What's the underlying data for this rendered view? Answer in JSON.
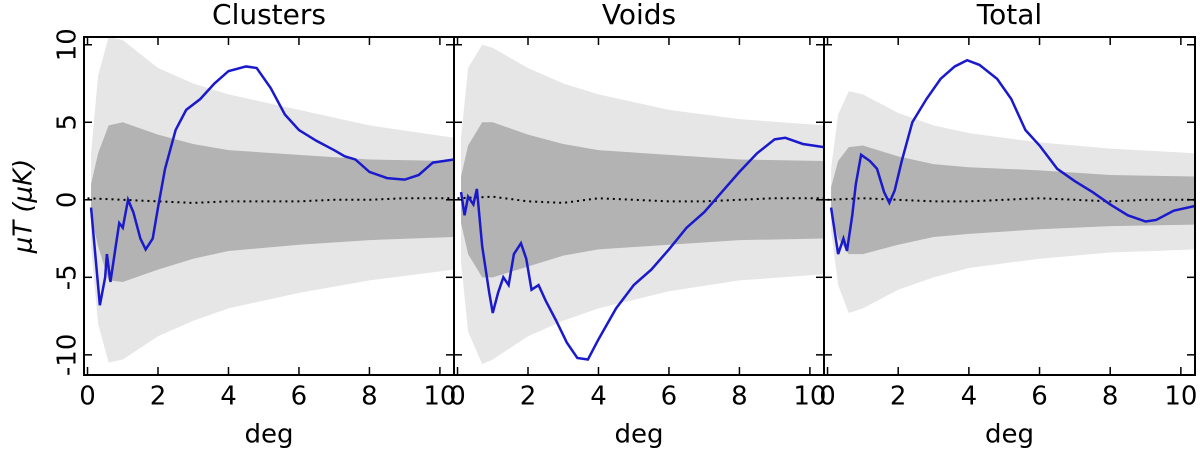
{
  "chart_data": [
    {
      "type": "line",
      "title": "Clusters",
      "xlabel": "deg",
      "ylabel": "μT (μK)",
      "xlim": [
        -0.1,
        10.4
      ],
      "ylim": [
        -11.3,
        10.5
      ],
      "xticks": [
        0,
        2,
        4,
        6,
        8,
        10
      ],
      "yticks": [
        -10,
        -5,
        0,
        5,
        10
      ],
      "bands": [
        {
          "color": "#e6e6e6",
          "x": [
            0.1,
            0.3,
            0.6,
            1,
            2,
            3,
            4,
            6,
            8,
            10.4
          ],
          "upper": [
            3,
            8,
            10.5,
            10.3,
            8.5,
            7.5,
            6.8,
            5.8,
            4.8,
            4
          ],
          "lower": [
            -3,
            -8,
            -10.5,
            -10.3,
            -8.8,
            -7.8,
            -7,
            -6,
            -5.2,
            -4.5
          ]
        },
        {
          "color": "#b3b3b3",
          "x": [
            0.1,
            0.3,
            0.6,
            1,
            2,
            3,
            4,
            6,
            8,
            10.4
          ],
          "upper": [
            1,
            3,
            4.8,
            5,
            4.2,
            3.6,
            3.2,
            2.9,
            2.6,
            2.5
          ],
          "lower": [
            -1,
            -3,
            -5.2,
            -5.3,
            -4.5,
            -3.8,
            -3.3,
            -2.9,
            -2.6,
            -2.4
          ]
        }
      ],
      "series": [
        {
          "color": "#000000",
          "style": "dotted",
          "x": [
            0,
            1,
            2,
            3,
            4,
            5,
            6,
            7,
            8,
            9,
            10.4
          ],
          "values": [
            0.1,
            0,
            -0.1,
            -0.2,
            -0.1,
            -0.1,
            -0.1,
            0,
            0,
            0.1,
            0.1
          ]
        },
        {
          "color": "#1a1acc",
          "x": [
            0.1,
            0.35,
            0.5,
            0.55,
            0.65,
            0.8,
            0.9,
            1.0,
            1.15,
            1.3,
            1.5,
            1.65,
            1.85,
            2.0,
            2.2,
            2.5,
            2.8,
            3.2,
            3.6,
            4.0,
            4.5,
            4.8,
            5.2,
            5.6,
            6.0,
            6.5,
            7.0,
            7.3,
            7.6,
            8.0,
            8.5,
            9.0,
            9.4,
            9.8,
            10.4
          ],
          "values": [
            -0.5,
            -6.8,
            -5,
            -3.5,
            -5.3,
            -3,
            -1.5,
            -1.8,
            0,
            -0.8,
            -2.5,
            -3.2,
            -2.5,
            -0.5,
            2,
            4.5,
            5.8,
            6.5,
            7.5,
            8.3,
            8.6,
            8.5,
            7.2,
            5.5,
            4.5,
            3.8,
            3.2,
            2.8,
            2.6,
            1.8,
            1.4,
            1.3,
            1.6,
            2.4,
            2.6
          ]
        }
      ]
    },
    {
      "type": "line",
      "title": "Voids",
      "xlabel": "deg",
      "xlim": [
        -0.1,
        10.4
      ],
      "ylim": [
        -11.3,
        10.5
      ],
      "xticks": [
        0,
        2,
        4,
        6,
        8,
        10
      ],
      "yticks": [
        -10,
        -5,
        0,
        5,
        10
      ],
      "bands": [
        {
          "color": "#e6e6e6",
          "x": [
            0.1,
            0.3,
            0.7,
            1,
            2,
            3,
            4,
            6,
            8,
            10.4
          ],
          "upper": [
            4,
            8.5,
            10,
            9.8,
            8.5,
            7.5,
            6.8,
            5.8,
            5.2,
            4.8
          ],
          "lower": [
            -4,
            -8.5,
            -10.6,
            -10.3,
            -8.8,
            -7.8,
            -7,
            -5.9,
            -5.2,
            -4.8
          ]
        },
        {
          "color": "#b3b3b3",
          "x": [
            0.1,
            0.3,
            0.7,
            1,
            2,
            3,
            4,
            6,
            8,
            10.4
          ],
          "upper": [
            1.5,
            3.5,
            5,
            5,
            4.2,
            3.6,
            3.2,
            2.9,
            2.6,
            2.5
          ],
          "lower": [
            -1.5,
            -3.5,
            -5,
            -5,
            -4.3,
            -3.6,
            -3.2,
            -2.9,
            -2.6,
            -2.5
          ]
        }
      ],
      "series": [
        {
          "color": "#000000",
          "style": "dotted",
          "x": [
            0,
            1,
            2,
            3,
            4,
            5,
            6,
            7,
            8,
            9,
            10.4
          ],
          "values": [
            0.1,
            0.2,
            -0.1,
            -0.2,
            0.1,
            0,
            -0.1,
            -0.1,
            0,
            0.1,
            0.1
          ]
        },
        {
          "color": "#1a1acc",
          "x": [
            0.1,
            0.2,
            0.3,
            0.45,
            0.55,
            0.7,
            0.9,
            1.0,
            1.15,
            1.3,
            1.45,
            1.6,
            1.8,
            1.95,
            2.1,
            2.3,
            2.5,
            2.8,
            3.1,
            3.4,
            3.7,
            4.0,
            4.5,
            5,
            5.5,
            6,
            6.5,
            7,
            7.5,
            8,
            8.5,
            9,
            9.3,
            9.8,
            10.4
          ],
          "values": [
            0.5,
            -1,
            0.2,
            -0.3,
            0.7,
            -3,
            -6,
            -7.3,
            -6,
            -5,
            -5.5,
            -3.5,
            -2.8,
            -3.8,
            -5.8,
            -5.5,
            -6.5,
            -7.8,
            -9.2,
            -10.2,
            -10.3,
            -9,
            -7,
            -5.5,
            -4.5,
            -3.2,
            -1.8,
            -0.8,
            0.5,
            1.8,
            3,
            3.9,
            4.0,
            3.6,
            3.4
          ]
        }
      ]
    },
    {
      "type": "line",
      "title": "Total",
      "xlabel": "deg",
      "xlim": [
        -0.1,
        10.4
      ],
      "ylim": [
        -11.3,
        10.5
      ],
      "xticks": [
        0,
        2,
        4,
        6,
        8,
        10
      ],
      "yticks": [
        -10,
        -5,
        0,
        5,
        10
      ],
      "bands": [
        {
          "color": "#e6e6e6",
          "x": [
            0.1,
            0.3,
            0.6,
            1,
            2,
            3,
            4,
            6,
            8,
            10.4
          ],
          "upper": [
            2,
            5.5,
            7,
            6.8,
            5.6,
            4.8,
            4.3,
            3.7,
            3.3,
            3
          ],
          "lower": [
            -2,
            -5.5,
            -7.3,
            -7,
            -5.8,
            -5,
            -4.4,
            -3.8,
            -3.4,
            -3.2
          ]
        },
        {
          "color": "#b3b3b3",
          "x": [
            0.1,
            0.3,
            0.6,
            1,
            2,
            3,
            4,
            6,
            8,
            10.4
          ],
          "upper": [
            0.8,
            2.5,
            3.4,
            3.5,
            2.8,
            2.3,
            2.1,
            1.9,
            1.6,
            1.5
          ],
          "lower": [
            -0.8,
            -2.5,
            -3.5,
            -3.5,
            -2.9,
            -2.4,
            -2.2,
            -1.9,
            -1.7,
            -1.6
          ]
        }
      ],
      "series": [
        {
          "color": "#000000",
          "style": "dotted",
          "x": [
            0,
            1,
            2,
            3,
            4,
            5,
            6,
            7,
            8,
            9,
            10.4
          ],
          "values": [
            0,
            0.1,
            0,
            -0.1,
            -0.1,
            0,
            0.1,
            0,
            -0.1,
            0,
            0
          ]
        },
        {
          "color": "#1a1acc",
          "x": [
            0.1,
            0.3,
            0.45,
            0.55,
            0.7,
            0.8,
            0.95,
            1.2,
            1.4,
            1.6,
            1.75,
            1.9,
            2.1,
            2.4,
            2.8,
            3.2,
            3.6,
            3.95,
            4.3,
            4.8,
            5.2,
            5.6,
            6,
            6.5,
            7,
            7.5,
            8,
            8.5,
            9,
            9.3,
            9.8,
            10.4
          ],
          "values": [
            -0.5,
            -3.5,
            -2.5,
            -3.3,
            -1,
            1,
            2.9,
            2.5,
            2,
            0.5,
            -0.2,
            0.6,
            2.5,
            5,
            6.5,
            7.8,
            8.6,
            9,
            8.7,
            7.8,
            6.5,
            4.5,
            3.5,
            2,
            1.2,
            0.5,
            -0.3,
            -1,
            -1.4,
            -1.3,
            -0.7,
            -0.4
          ]
        }
      ]
    }
  ]
}
